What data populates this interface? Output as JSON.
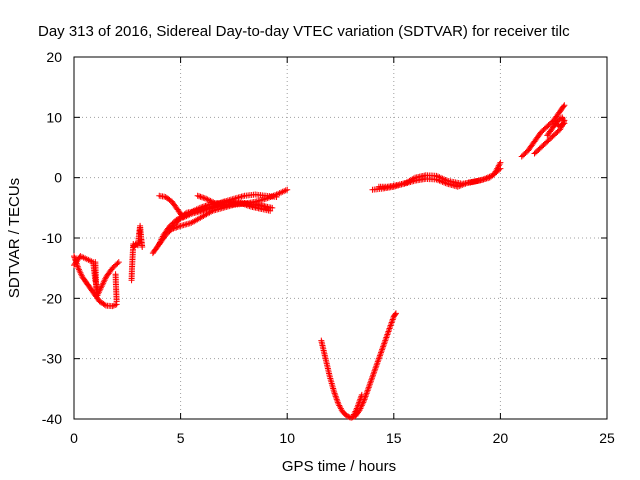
{
  "chart_data": {
    "type": "scatter",
    "title": "Day 313 of 2016, Sidereal Day-to-day VTEC variation (SDTVAR) for receiver tilc",
    "xlabel": "GPS time / hours",
    "ylabel": "SDTVAR / TECUs",
    "xlim": [
      0,
      25
    ],
    "ylim": [
      -40,
      20
    ],
    "xticks": [
      0,
      5,
      10,
      15,
      20,
      25
    ],
    "yticks": [
      -40,
      -30,
      -20,
      -10,
      0,
      10,
      20
    ],
    "grid": true,
    "marker": "+",
    "color": "#ff0000",
    "segments": [
      [
        [
          0.0,
          -14.5
        ],
        [
          0.3,
          -13.0
        ],
        [
          0.6,
          -13.5
        ],
        [
          0.9,
          -14.0
        ],
        [
          1.0,
          -17.0
        ],
        [
          1.1,
          -18.5
        ]
      ],
      [
        [
          0.0,
          -13.0
        ],
        [
          0.2,
          -15.0
        ],
        [
          0.4,
          -16.5
        ],
        [
          0.6,
          -17.5
        ],
        [
          0.8,
          -18.5
        ],
        [
          1.0,
          -19.5
        ],
        [
          1.2,
          -20.5
        ],
        [
          1.5,
          -21.2
        ],
        [
          1.8,
          -21.3
        ],
        [
          2.0,
          -21.0
        ]
      ],
      [
        [
          1.1,
          -19.5
        ],
        [
          1.3,
          -18.0
        ],
        [
          1.5,
          -16.5
        ],
        [
          1.8,
          -15.0
        ],
        [
          2.1,
          -14.0
        ]
      ],
      [
        [
          1.0,
          -14.0
        ],
        [
          1.02,
          -16.0
        ],
        [
          1.04,
          -18.0
        ],
        [
          1.06,
          -19.5
        ]
      ],
      [
        [
          1.95,
          -16.0
        ],
        [
          1.97,
          -18.0
        ],
        [
          2.0,
          -20.5
        ]
      ],
      [
        [
          2.7,
          -17.0
        ],
        [
          2.72,
          -15.0
        ],
        [
          2.75,
          -13.0
        ],
        [
          2.78,
          -11.0
        ],
        [
          2.8,
          -11.5
        ],
        [
          2.9,
          -11.0
        ],
        [
          3.0,
          -11.2
        ],
        [
          3.05,
          -9.5
        ],
        [
          3.1,
          -8.0
        ],
        [
          3.15,
          -10.0
        ],
        [
          3.2,
          -11.5
        ]
      ],
      [
        [
          3.7,
          -12.5
        ],
        [
          3.9,
          -11.5
        ],
        [
          4.1,
          -10.5
        ],
        [
          4.3,
          -9.5
        ],
        [
          4.6,
          -8.5
        ],
        [
          5.0,
          -8.0
        ],
        [
          5.5,
          -7.5
        ],
        [
          6.0,
          -6.5
        ],
        [
          6.5,
          -5.5
        ],
        [
          7.0,
          -5.0
        ],
        [
          7.5,
          -4.5
        ],
        [
          8.0,
          -4.3
        ],
        [
          8.5,
          -4.0
        ],
        [
          9.0,
          -3.5
        ],
        [
          9.5,
          -2.8
        ],
        [
          10.0,
          -2.0
        ]
      ],
      [
        [
          4.0,
          -11.0
        ],
        [
          4.2,
          -9.5
        ],
        [
          4.5,
          -8.0
        ],
        [
          4.8,
          -7.0
        ],
        [
          5.2,
          -6.5
        ],
        [
          5.5,
          -6.0
        ],
        [
          6.0,
          -5.5
        ],
        [
          6.5,
          -4.8
        ],
        [
          7.0,
          -4.0
        ],
        [
          7.5,
          -3.5
        ],
        [
          8.0,
          -3.0
        ],
        [
          8.5,
          -2.8
        ],
        [
          9.0,
          -3.0
        ],
        [
          9.5,
          -3.2
        ]
      ],
      [
        [
          4.5,
          -8.5
        ],
        [
          4.8,
          -7.5
        ],
        [
          5.0,
          -6.5
        ],
        [
          5.3,
          -5.8
        ],
        [
          5.8,
          -5.5
        ],
        [
          6.3,
          -5.2
        ],
        [
          6.8,
          -4.8
        ],
        [
          7.3,
          -4.5
        ],
        [
          7.8,
          -4.3
        ],
        [
          8.5,
          -4.4
        ],
        [
          9.0,
          -4.8
        ],
        [
          9.3,
          -5.0
        ]
      ],
      [
        [
          4.0,
          -3.0
        ],
        [
          4.3,
          -3.2
        ],
        [
          4.6,
          -4.0
        ],
        [
          4.9,
          -5.5
        ],
        [
          5.1,
          -6.5
        ],
        [
          5.4,
          -6.0
        ],
        [
          5.6,
          -5.5
        ],
        [
          5.9,
          -5.0
        ],
        [
          6.3,
          -4.5
        ],
        [
          6.8,
          -4.2
        ],
        [
          7.3,
          -4.0
        ],
        [
          7.8,
          -4.2
        ],
        [
          8.3,
          -4.8
        ],
        [
          8.8,
          -5.2
        ],
        [
          9.2,
          -5.5
        ]
      ],
      [
        [
          5.8,
          -3.0
        ],
        [
          6.2,
          -3.5
        ],
        [
          6.6,
          -4.2
        ],
        [
          7.0,
          -4.5
        ],
        [
          7.5,
          -4.3
        ],
        [
          8.0,
          -4.2
        ],
        [
          8.5,
          -4.5
        ],
        [
          9.0,
          -4.8
        ]
      ],
      [
        [
          11.6,
          -27.0
        ],
        [
          11.8,
          -30.0
        ],
        [
          12.0,
          -33.0
        ],
        [
          12.2,
          -35.5
        ],
        [
          12.4,
          -37.5
        ],
        [
          12.6,
          -38.8
        ],
        [
          12.8,
          -39.5
        ],
        [
          13.0,
          -39.8
        ],
        [
          13.2,
          -39.5
        ],
        [
          13.4,
          -38.5
        ],
        [
          13.6,
          -37.0
        ],
        [
          13.8,
          -35.0
        ],
        [
          14.0,
          -33.0
        ],
        [
          14.2,
          -31.0
        ],
        [
          14.4,
          -29.0
        ],
        [
          14.6,
          -27.0
        ],
        [
          14.8,
          -25.0
        ],
        [
          15.0,
          -23.0
        ],
        [
          15.1,
          -22.5
        ]
      ],
      [
        [
          13.1,
          -39.5
        ],
        [
          13.3,
          -38.0
        ],
        [
          13.5,
          -36.0
        ]
      ],
      [
        [
          14.0,
          -2.0
        ],
        [
          14.5,
          -1.8
        ],
        [
          15.0,
          -1.5
        ],
        [
          15.5,
          -1.0
        ],
        [
          16.0,
          -0.5
        ],
        [
          16.5,
          -0.2
        ],
        [
          17.0,
          -0.3
        ],
        [
          17.5,
          -1.0
        ],
        [
          18.0,
          -1.5
        ],
        [
          18.5,
          -0.8
        ],
        [
          19.0,
          -0.5
        ],
        [
          19.5,
          0.0
        ],
        [
          20.0,
          1.5
        ]
      ],
      [
        [
          14.3,
          -1.5
        ],
        [
          14.7,
          -1.5
        ],
        [
          15.2,
          -1.2
        ],
        [
          15.6,
          -0.8
        ],
        [
          16.0,
          0.0
        ],
        [
          16.5,
          0.4
        ],
        [
          17.0,
          0.3
        ],
        [
          17.5,
          -0.5
        ],
        [
          18.2,
          -1.0
        ],
        [
          18.6,
          -0.8
        ],
        [
          19.2,
          -0.3
        ],
        [
          19.7,
          0.5
        ],
        [
          20.0,
          2.5
        ]
      ],
      [
        [
          21.0,
          3.5
        ],
        [
          21.3,
          4.5
        ],
        [
          21.6,
          6.0
        ],
        [
          21.9,
          7.5
        ],
        [
          22.2,
          8.5
        ],
        [
          22.5,
          9.5
        ],
        [
          22.8,
          11.0
        ],
        [
          23.0,
          12.0
        ]
      ],
      [
        [
          21.6,
          4.0
        ],
        [
          21.9,
          5.0
        ],
        [
          22.2,
          6.0
        ],
        [
          22.5,
          7.0
        ],
        [
          22.8,
          8.0
        ],
        [
          23.0,
          9.5
        ]
      ],
      [
        [
          22.2,
          7.0
        ],
        [
          22.5,
          8.5
        ],
        [
          22.7,
          9.5
        ],
        [
          22.9,
          10.0
        ],
        [
          23.0,
          9.0
        ],
        [
          22.8,
          8.5
        ],
        [
          22.6,
          9.0
        ]
      ]
    ]
  }
}
